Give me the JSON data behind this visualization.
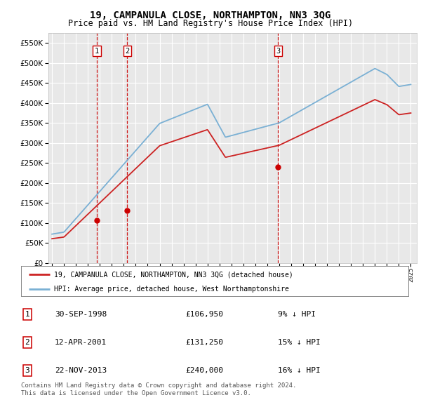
{
  "title": "19, CAMPANULA CLOSE, NORTHAMPTON, NN3 3QG",
  "subtitle": "Price paid vs. HM Land Registry's House Price Index (HPI)",
  "title_fontsize": 10,
  "subtitle_fontsize": 8.5,
  "background_color": "#ffffff",
  "plot_bg_color": "#e8e8e8",
  "grid_color": "#ffffff",
  "ylim": [
    0,
    575000
  ],
  "yticks": [
    0,
    50000,
    100000,
    150000,
    200000,
    250000,
    300000,
    350000,
    400000,
    450000,
    500000,
    550000
  ],
  "vline_color": "#cc0000",
  "sale_marker_color": "#cc0000",
  "hpi_color": "#7ab0d4",
  "price_color": "#cc2222",
  "legend_label_price": "19, CAMPANULA CLOSE, NORTHAMPTON, NN3 3QG (detached house)",
  "legend_label_hpi": "HPI: Average price, detached house, West Northamptonshire",
  "table_rows": [
    {
      "label": "1",
      "date": "30-SEP-1998",
      "price": "£106,950",
      "hpi": "9% ↓ HPI"
    },
    {
      "label": "2",
      "date": "12-APR-2001",
      "price": "£131,250",
      "hpi": "15% ↓ HPI"
    },
    {
      "label": "3",
      "date": "22-NOV-2013",
      "price": "£240,000",
      "hpi": "16% ↓ HPI"
    }
  ],
  "footnote": "Contains HM Land Registry data © Crown copyright and database right 2024.\nThis data is licensed under the Open Government Licence v3.0.",
  "sale_year_floats": [
    1998.75,
    2001.29,
    2013.9
  ],
  "sale_prices_on_line": [
    106950,
    131250,
    240000
  ]
}
